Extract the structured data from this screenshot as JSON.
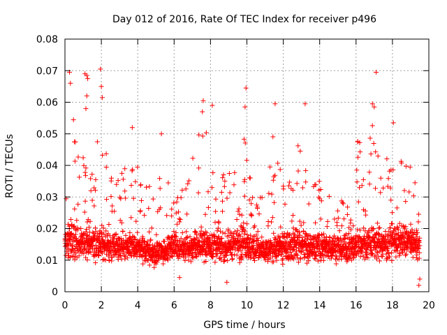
{
  "chart_data": {
    "type": "scatter",
    "title": "Day 012 of 2016, Rate Of TEC Index for receiver p496",
    "xlabel": "GPS time / hours",
    "ylabel": "ROTI / TECUs",
    "xlim": [
      0,
      20
    ],
    "ylim": [
      0,
      0.08
    ],
    "xticks": [
      0,
      2,
      4,
      6,
      8,
      10,
      12,
      14,
      16,
      18,
      20
    ],
    "xtick_labels": [
      "0",
      "2",
      "4",
      "6",
      "8",
      "10",
      "12",
      "14",
      "16",
      "18",
      "20"
    ],
    "yticks": [
      0,
      0.01,
      0.02,
      0.03,
      0.04,
      0.05,
      0.06,
      0.07,
      0.08
    ],
    "ytick_labels": [
      "0",
      "0.01",
      "0.02",
      "0.03",
      "0.04",
      "0.05",
      "0.06",
      "0.07",
      "0.08"
    ],
    "grid": true,
    "marker": "+",
    "color": "#ff0000",
    "x_extent": [
      0,
      19.5
    ],
    "envelope": [
      {
        "x": 0.0,
        "median": 0.015,
        "spread": 0.008,
        "max": 0.03
      },
      {
        "x": 0.3,
        "median": 0.016,
        "spread": 0.012,
        "max": 0.07
      },
      {
        "x": 0.6,
        "median": 0.016,
        "spread": 0.01,
        "max": 0.056
      },
      {
        "x": 1.0,
        "median": 0.015,
        "spread": 0.01,
        "max": 0.048
      },
      {
        "x": 1.2,
        "median": 0.016,
        "spread": 0.011,
        "max": 0.069
      },
      {
        "x": 1.5,
        "median": 0.015,
        "spread": 0.009,
        "max": 0.045
      },
      {
        "x": 2.0,
        "median": 0.015,
        "spread": 0.009,
        "max": 0.07
      },
      {
        "x": 2.5,
        "median": 0.014,
        "spread": 0.008,
        "max": 0.04
      },
      {
        "x": 3.0,
        "median": 0.014,
        "spread": 0.008,
        "max": 0.042
      },
      {
        "x": 3.5,
        "median": 0.014,
        "spread": 0.008,
        "max": 0.045
      },
      {
        "x": 3.8,
        "median": 0.014,
        "spread": 0.009,
        "max": 0.052
      },
      {
        "x": 4.5,
        "median": 0.013,
        "spread": 0.008,
        "max": 0.04
      },
      {
        "x": 5.0,
        "median": 0.012,
        "spread": 0.007,
        "max": 0.035
      },
      {
        "x": 5.4,
        "median": 0.013,
        "spread": 0.008,
        "max": 0.05
      },
      {
        "x": 6.0,
        "median": 0.014,
        "spread": 0.007,
        "max": 0.032
      },
      {
        "x": 6.8,
        "median": 0.014,
        "spread": 0.008,
        "max": 0.042
      },
      {
        "x": 7.5,
        "median": 0.015,
        "spread": 0.009,
        "max": 0.06
      },
      {
        "x": 8.2,
        "median": 0.014,
        "spread": 0.009,
        "max": 0.058
      },
      {
        "x": 8.8,
        "median": 0.014,
        "spread": 0.008,
        "max": 0.04
      },
      {
        "x": 9.3,
        "median": 0.015,
        "spread": 0.01,
        "max": 0.045
      },
      {
        "x": 9.8,
        "median": 0.016,
        "spread": 0.011,
        "max": 0.065
      },
      {
        "x": 10.4,
        "median": 0.013,
        "spread": 0.008,
        "max": 0.032
      },
      {
        "x": 11.0,
        "median": 0.013,
        "spread": 0.008,
        "max": 0.035
      },
      {
        "x": 11.5,
        "median": 0.014,
        "spread": 0.008,
        "max": 0.059
      },
      {
        "x": 12.0,
        "median": 0.014,
        "spread": 0.009,
        "max": 0.04
      },
      {
        "x": 12.6,
        "median": 0.015,
        "spread": 0.01,
        "max": 0.053
      },
      {
        "x": 13.1,
        "median": 0.015,
        "spread": 0.01,
        "max": 0.059
      },
      {
        "x": 13.6,
        "median": 0.014,
        "spread": 0.008,
        "max": 0.038
      },
      {
        "x": 14.2,
        "median": 0.014,
        "spread": 0.009,
        "max": 0.045
      },
      {
        "x": 14.8,
        "median": 0.014,
        "spread": 0.007,
        "max": 0.03
      },
      {
        "x": 15.5,
        "median": 0.013,
        "spread": 0.008,
        "max": 0.037
      },
      {
        "x": 16.0,
        "median": 0.015,
        "spread": 0.01,
        "max": 0.055
      },
      {
        "x": 16.5,
        "median": 0.016,
        "spread": 0.01,
        "max": 0.052
      },
      {
        "x": 17.0,
        "median": 0.016,
        "spread": 0.011,
        "max": 0.069
      },
      {
        "x": 17.5,
        "median": 0.015,
        "spread": 0.009,
        "max": 0.048
      },
      {
        "x": 18.0,
        "median": 0.016,
        "spread": 0.01,
        "max": 0.053
      },
      {
        "x": 18.5,
        "median": 0.016,
        "spread": 0.01,
        "max": 0.052
      },
      {
        "x": 19.0,
        "median": 0.016,
        "spread": 0.009,
        "max": 0.045
      },
      {
        "x": 19.5,
        "median": 0.014,
        "spread": 0.008,
        "max": 0.036
      }
    ],
    "outliers": [
      {
        "x": 0.25,
        "y": 0.0695
      },
      {
        "x": 0.3,
        "y": 0.066
      },
      {
        "x": 1.1,
        "y": 0.069
      },
      {
        "x": 1.2,
        "y": 0.0685
      },
      {
        "x": 1.25,
        "y": 0.0675
      },
      {
        "x": 1.2,
        "y": 0.062
      },
      {
        "x": 1.15,
        "y": 0.058
      },
      {
        "x": 1.95,
        "y": 0.0705
      },
      {
        "x": 2.0,
        "y": 0.065
      },
      {
        "x": 2.05,
        "y": 0.0615
      },
      {
        "x": 3.7,
        "y": 0.052
      },
      {
        "x": 5.3,
        "y": 0.05
      },
      {
        "x": 7.6,
        "y": 0.0605
      },
      {
        "x": 7.55,
        "y": 0.057
      },
      {
        "x": 8.1,
        "y": 0.059
      },
      {
        "x": 9.95,
        "y": 0.0645
      },
      {
        "x": 9.9,
        "y": 0.0585
      },
      {
        "x": 11.55,
        "y": 0.0595
      },
      {
        "x": 13.2,
        "y": 0.0595
      },
      {
        "x": 17.1,
        "y": 0.0695
      },
      {
        "x": 16.9,
        "y": 0.0595
      },
      {
        "x": 17.0,
        "y": 0.0585
      },
      {
        "x": 18.05,
        "y": 0.0535
      },
      {
        "x": 19.45,
        "y": 0.002
      },
      {
        "x": 19.5,
        "y": 0.004
      },
      {
        "x": 6.3,
        "y": 0.0045
      },
      {
        "x": 8.9,
        "y": 0.003
      }
    ]
  }
}
